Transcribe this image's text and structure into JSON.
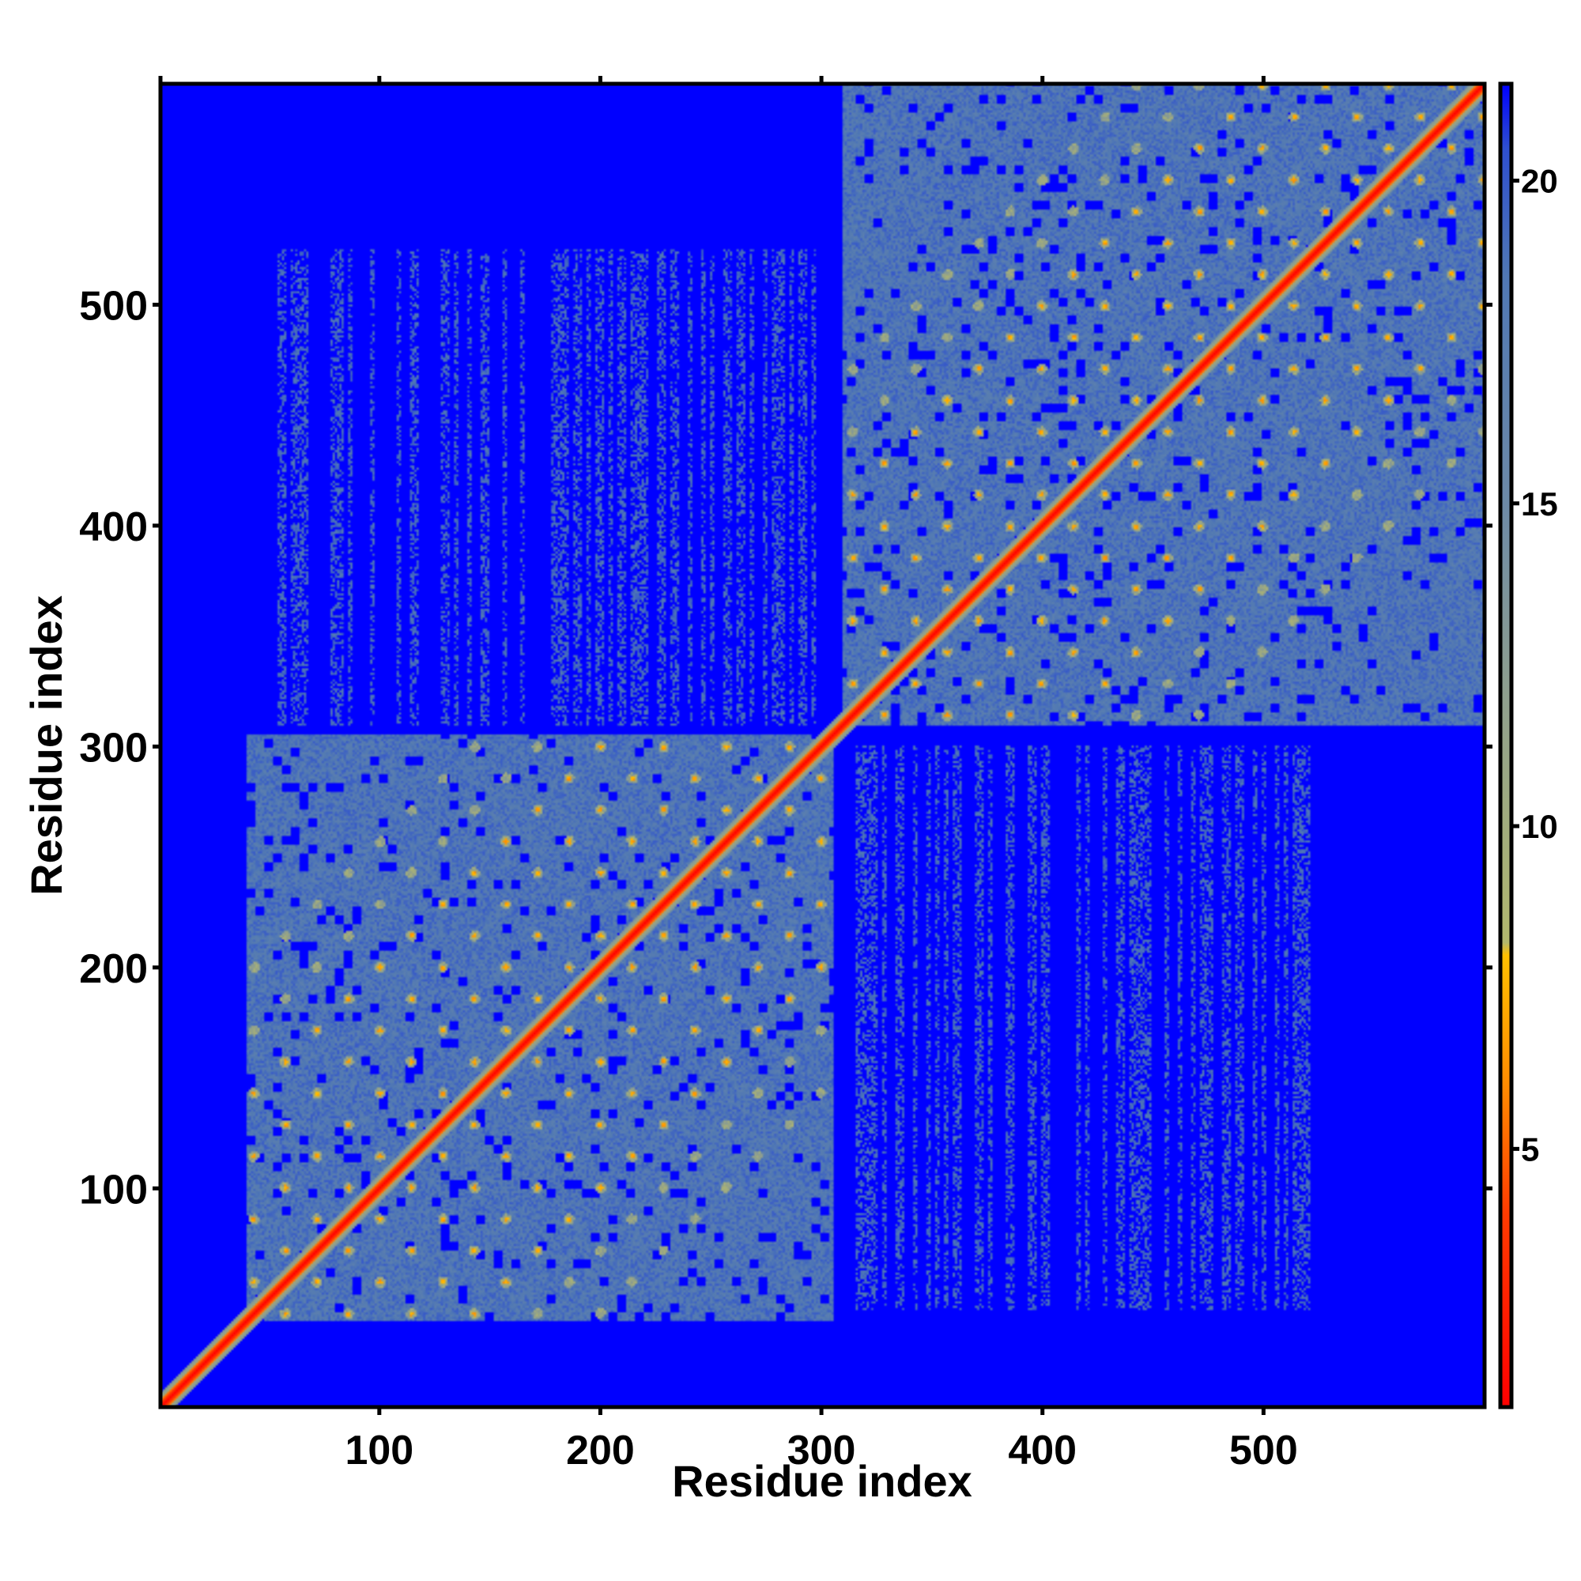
{
  "chart_data": {
    "type": "heatmap",
    "title": "",
    "xlabel": "Residue index",
    "ylabel": "Residue index",
    "xlim": [
      1,
      600
    ],
    "ylim": [
      1,
      600
    ],
    "x_ticks": [
      100,
      200,
      300,
      400,
      500
    ],
    "y_ticks": [
      100,
      200,
      300,
      400,
      500
    ],
    "colorbar": {
      "range": [
        1,
        21.5
      ],
      "ticks": [
        5,
        10,
        15,
        20
      ],
      "stops": [
        {
          "value": 1,
          "color": "#ff0000"
        },
        {
          "value": 4,
          "color": "#ff3b00"
        },
        {
          "value": 6,
          "color": "#ff8c00"
        },
        {
          "value": 8,
          "color": "#ffc000"
        },
        {
          "value": 8.2,
          "color": "#b2b86e"
        },
        {
          "value": 12,
          "color": "#8f9f8e"
        },
        {
          "value": 15,
          "color": "#6d8aa7"
        },
        {
          "value": 18.5,
          "color": "#5078b4"
        },
        {
          "value": 20.5,
          "color": "#2e4fd0"
        },
        {
          "value": 21.5,
          "color": "#0000ff"
        }
      ]
    },
    "background_color": "#0000ff",
    "domains": [
      {
        "range": [
          40,
          305
        ],
        "background_value": 18.5
      },
      {
        "range": [
          310,
          600
        ],
        "background_value": 18.5
      }
    ],
    "inter_domain_contacts": {
      "x_range": [
        310,
        525
      ],
      "y_range": [
        45,
        300
      ],
      "density": "sparse"
    },
    "diagonal_width_residues": 3
  }
}
